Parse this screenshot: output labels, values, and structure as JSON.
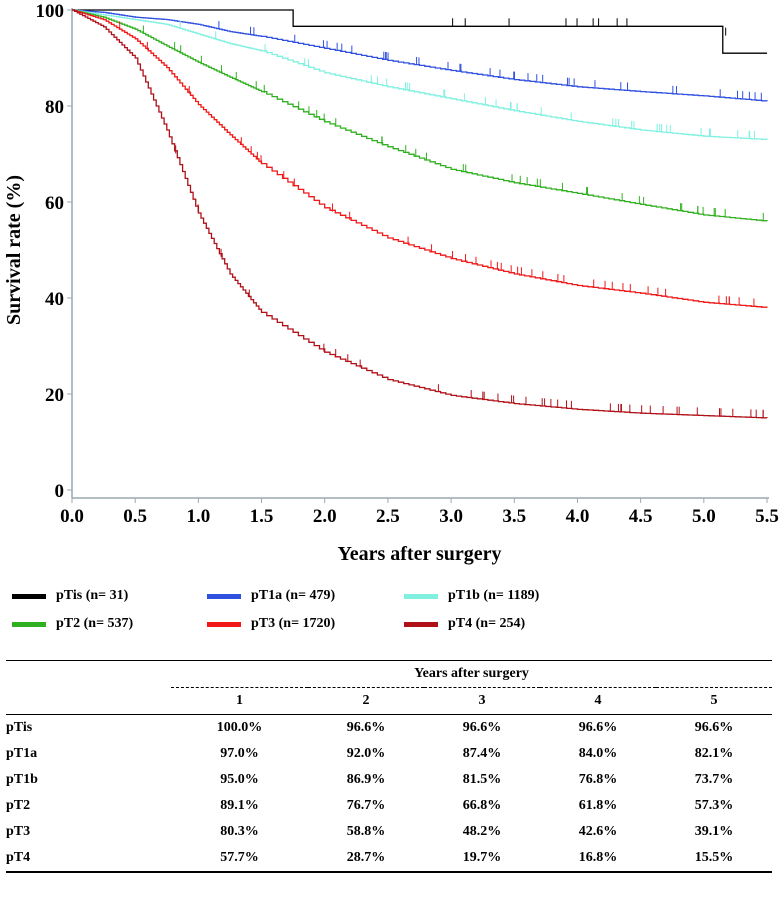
{
  "chart_data": {
    "type": "line",
    "title": "",
    "xlabel": "Years after surgery",
    "ylabel": "Survival rate (%)",
    "xlim": [
      0,
      5.5
    ],
    "ylim": [
      0,
      100
    ],
    "xticks": [
      "0.0",
      "0.5",
      "1.0",
      "1.5",
      "2.0",
      "2.5",
      "3.0",
      "3.5",
      "4.0",
      "4.5",
      "5.0",
      "5.5"
    ],
    "yticks": [
      "0",
      "20",
      "40",
      "60",
      "80",
      "100"
    ],
    "x": [
      0,
      0.25,
      0.5,
      0.75,
      1,
      1.25,
      1.5,
      2,
      2.5,
      3,
      3.5,
      4,
      4.5,
      5,
      5.5
    ],
    "series": [
      {
        "name": "pTis (n= 31)",
        "color": "#000000",
        "values": [
          100,
          100,
          100,
          100,
          100,
          100,
          100,
          96.6,
          96.6,
          96.6,
          96.6,
          96.6,
          96.6,
          96.6,
          91
        ]
      },
      {
        "name": "pT1a (n= 479)",
        "color": "#3050e0",
        "values": [
          100,
          99.5,
          98.5,
          98,
          97,
          95.5,
          94.5,
          92,
          89.5,
          87.4,
          85.5,
          84,
          83,
          82.1,
          81
        ]
      },
      {
        "name": "pT1b (n= 1189)",
        "color": "#80f0e0",
        "values": [
          100,
          99,
          98,
          97,
          95,
          93,
          91.5,
          86.9,
          84,
          81.5,
          79,
          76.8,
          75,
          73.7,
          73
        ]
      },
      {
        "name": "pT2 (n= 537)",
        "color": "#30b020",
        "values": [
          100,
          98.5,
          96,
          92.5,
          89.1,
          86,
          83,
          76.7,
          71.5,
          66.8,
          64,
          61.8,
          59.5,
          57.3,
          56
        ]
      },
      {
        "name": "pT3 (n= 1720)",
        "color": "#f01818",
        "values": [
          100,
          98,
          94,
          88,
          80.3,
          74,
          68,
          58.8,
          52.5,
          48.2,
          45,
          42.6,
          41,
          39.1,
          38
        ]
      },
      {
        "name": "pT4 (n= 254)",
        "color": "#b01018",
        "values": [
          100,
          96.5,
          90,
          75,
          57.7,
          45,
          37,
          28.7,
          23,
          19.7,
          18,
          16.8,
          16,
          15.5,
          15
        ]
      }
    ],
    "legend_placement": "bottom"
  },
  "table": {
    "group_header": "Years after surgery",
    "columns": [
      "",
      "1",
      "2",
      "3",
      "4",
      "5"
    ],
    "rows": [
      [
        "pTis",
        "100.0%",
        "96.6%",
        "96.6%",
        "96.6%",
        "96.6%"
      ],
      [
        "pT1a",
        "97.0%",
        "92.0%",
        "87.4%",
        "84.0%",
        "82.1%"
      ],
      [
        "pT1b",
        "95.0%",
        "86.9%",
        "81.5%",
        "76.8%",
        "73.7%"
      ],
      [
        "pT2",
        "89.1%",
        "76.7%",
        "66.8%",
        "61.8%",
        "57.3%"
      ],
      [
        "pT3",
        "80.3%",
        "58.8%",
        "48.2%",
        "42.6%",
        "39.1%"
      ],
      [
        "pT4",
        "57.7%",
        "28.7%",
        "19.7%",
        "16.8%",
        "15.5%"
      ]
    ]
  }
}
